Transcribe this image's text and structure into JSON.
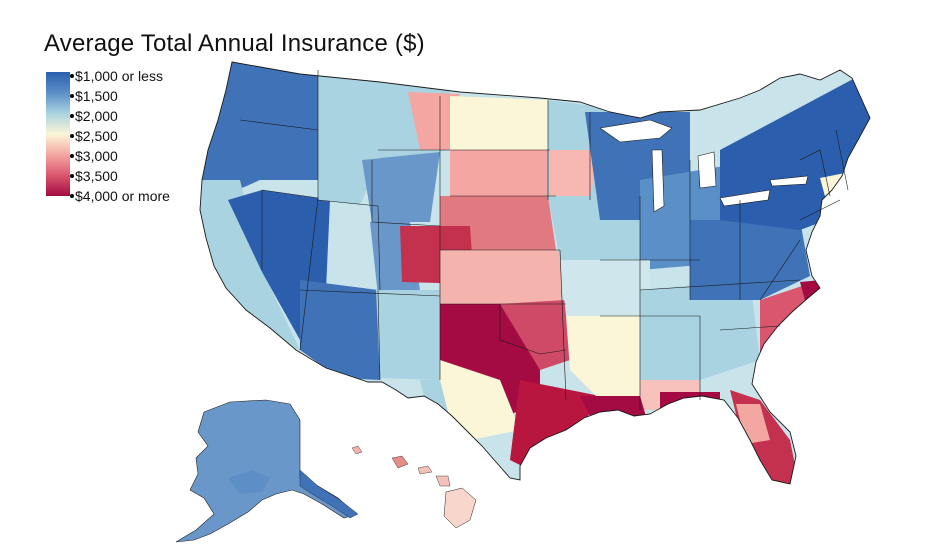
{
  "title": "Average Total Annual Insurance ($)",
  "legend": {
    "labels": [
      "$1,000 or less",
      "$1,500",
      "$2,000",
      "$2,500",
      "$3,000",
      "$3,500",
      "$4,000 or more"
    ],
    "colors": [
      "#2b5fad",
      "#5a8fc8",
      "#a9d3e0",
      "#fbf6d7",
      "#f4a6a2",
      "#d9566e",
      "#a30b42"
    ]
  },
  "regions": [
    {
      "name": "pacific-northwest",
      "level": 1.4
    },
    {
      "name": "california-coast",
      "level": 1.9
    },
    {
      "name": "great-basin",
      "level": 1.0
    },
    {
      "name": "desert-southwest",
      "level": 1.3
    },
    {
      "name": "mountain-north",
      "level": 1.8
    },
    {
      "name": "northern-plains",
      "level": 2.8
    },
    {
      "name": "central-plains",
      "level": 3.2
    },
    {
      "name": "colorado-front",
      "level": 3.6
    },
    {
      "name": "texas-oklahoma",
      "level": 3.9
    },
    {
      "name": "gulf-coast",
      "level": 3.8
    },
    {
      "name": "florida",
      "level": 3.4
    },
    {
      "name": "midwest",
      "level": 1.7
    },
    {
      "name": "mississippi-valley",
      "level": 2.3
    },
    {
      "name": "southeast",
      "level": 1.6
    },
    {
      "name": "appalachia",
      "level": 1.2
    },
    {
      "name": "northeast",
      "level": 1.1
    },
    {
      "name": "carolina-coast",
      "level": 3.3
    },
    {
      "name": "alaska",
      "level": 1.5
    },
    {
      "name": "hawaii",
      "level": 2.8
    }
  ]
}
